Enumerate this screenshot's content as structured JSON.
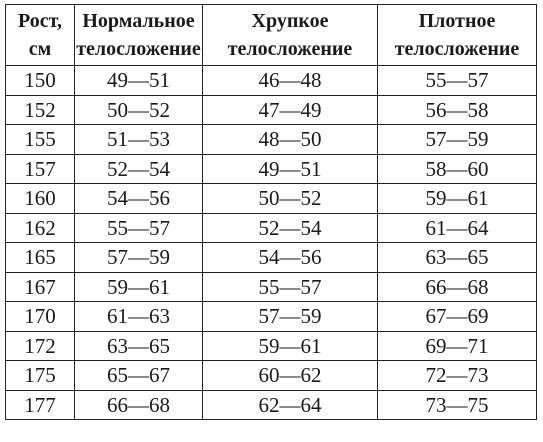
{
  "table": {
    "headers": [
      {
        "line1": "Рост,",
        "line2": "см"
      },
      {
        "line1": "Нормальное",
        "line2": "телосложение"
      },
      {
        "line1": "Хрупкое",
        "line2": "телосложение"
      },
      {
        "line1": "Плотное",
        "line2": "телосложение"
      }
    ],
    "rows": [
      [
        "150",
        "49—51",
        "46—48",
        "55—57"
      ],
      [
        "152",
        "50—52",
        "47—49",
        "56—58"
      ],
      [
        "155",
        "51—53",
        "48—50",
        "57—59"
      ],
      [
        "157",
        "52—54",
        "49—51",
        "58—60"
      ],
      [
        "160",
        "54—56",
        "50—52",
        "59—61"
      ],
      [
        "162",
        "55—57",
        "52—54",
        "61—64"
      ],
      [
        "165",
        "57—59",
        "54—56",
        "63—65"
      ],
      [
        "167",
        "59—61",
        "55—57",
        "66—68"
      ],
      [
        "170",
        "61—63",
        "57—59",
        "67—69"
      ],
      [
        "172",
        "63—65",
        "59—61",
        "69—71"
      ],
      [
        "175",
        "65—67",
        "60—62",
        "72—73"
      ],
      [
        "177",
        "66—68",
        "62—64",
        "73—75"
      ]
    ]
  }
}
